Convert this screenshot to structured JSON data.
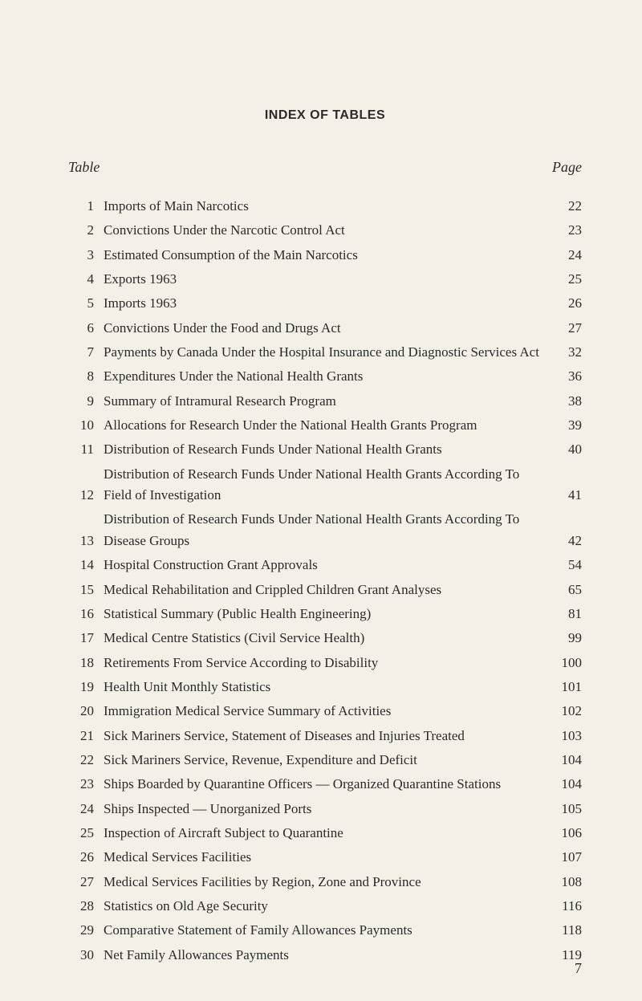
{
  "title": "INDEX OF TABLES",
  "tableHeader": "Table",
  "pageHeader": "Page",
  "pageNumber": "7",
  "entries": [
    {
      "num": "1",
      "text": "Imports of Main Narcotics",
      "page": "22"
    },
    {
      "num": "2",
      "text": "Convictions Under the Narcotic Control Act",
      "page": "23"
    },
    {
      "num": "3",
      "text": "Estimated Consumption of the Main Narcotics",
      "page": "24"
    },
    {
      "num": "4",
      "text": "Exports 1963",
      "page": "25"
    },
    {
      "num": "5",
      "text": "Imports 1963",
      "page": "26"
    },
    {
      "num": "6",
      "text": "Convictions Under the Food and Drugs Act",
      "page": "27"
    },
    {
      "num": "7",
      "text": "Payments by Canada Under the Hospital Insurance and Diagnostic Services Act",
      "page": "32"
    },
    {
      "num": "8",
      "text": "Expenditures Under the National Health Grants",
      "page": "36"
    },
    {
      "num": "9",
      "text": "Summary of Intramural Research Program",
      "page": "38"
    },
    {
      "num": "10",
      "text": "Allocations for Research Under the National Health Grants Program",
      "page": "39"
    },
    {
      "num": "11",
      "text": "Distribution of Research Funds Under National Health Grants",
      "page": "40"
    },
    {
      "num": "12",
      "text": "Distribution of Research Funds Under National Health Grants According To Field of Investigation",
      "page": "41"
    },
    {
      "num": "13",
      "text": "Distribution of Research Funds Under National Health Grants According To Disease Groups",
      "page": "42"
    },
    {
      "num": "14",
      "text": "Hospital Construction Grant Approvals",
      "page": "54"
    },
    {
      "num": "15",
      "text": "Medical Rehabilitation and Crippled Children Grant Analyses",
      "page": "65"
    },
    {
      "num": "16",
      "text": "Statistical Summary (Public Health Engineering)",
      "page": "81"
    },
    {
      "num": "17",
      "text": "Medical Centre Statistics (Civil Service Health)",
      "page": "99"
    },
    {
      "num": "18",
      "text": "Retirements From Service According to Disability",
      "page": "100"
    },
    {
      "num": "19",
      "text": "Health Unit Monthly Statistics",
      "page": "101"
    },
    {
      "num": "20",
      "text": "Immigration Medical Service Summary of Activities",
      "page": "102"
    },
    {
      "num": "21",
      "text": "Sick Mariners Service, Statement of Diseases and Injuries Treated",
      "page": "103"
    },
    {
      "num": "22",
      "text": "Sick Mariners Service, Revenue, Expenditure and Deficit",
      "page": "104"
    },
    {
      "num": "23",
      "text": "Ships Boarded by Quarantine Officers — Organized Quarantine Stations",
      "page": "104"
    },
    {
      "num": "24",
      "text": "Ships Inspected — Unorganized Ports",
      "page": "105"
    },
    {
      "num": "25",
      "text": "Inspection of Aircraft Subject to Quarantine",
      "page": "106"
    },
    {
      "num": "26",
      "text": "Medical Services Facilities",
      "page": "107"
    },
    {
      "num": "27",
      "text": "Medical Services Facilities by Region, Zone and Province",
      "page": "108"
    },
    {
      "num": "28",
      "text": "Statistics on Old Age Security",
      "page": "116"
    },
    {
      "num": "29",
      "text": "Comparative Statement of Family Allowances Payments",
      "page": "118"
    },
    {
      "num": "30",
      "text": "Net Family Allowances Payments",
      "page": "119"
    }
  ]
}
